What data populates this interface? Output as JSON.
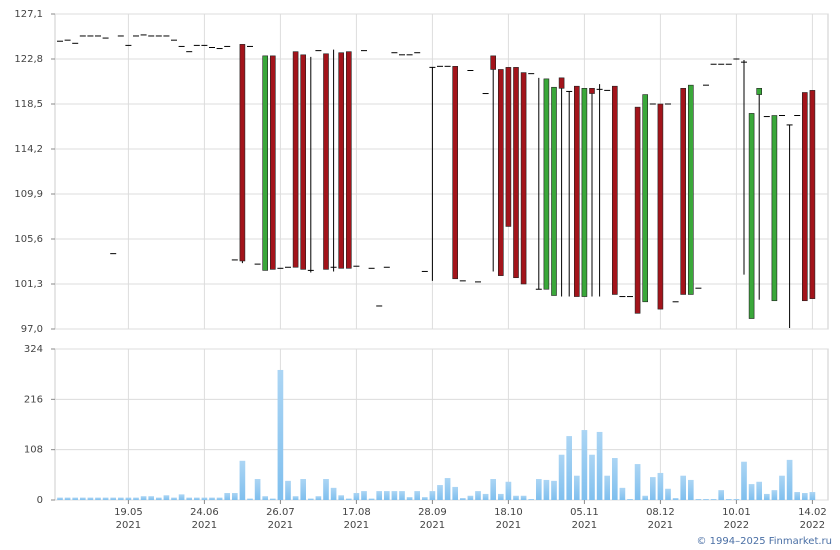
{
  "chart_data": {
    "type": "candlestick",
    "categories": [
      null,
      null,
      null,
      null,
      null,
      null,
      null,
      null,
      null,
      "19.05\n2021",
      null,
      null,
      null,
      null,
      null,
      null,
      null,
      null,
      null,
      "24.06\n2021",
      null,
      null,
      null,
      null,
      null,
      null,
      null,
      null,
      null,
      "26.07\n2021",
      null,
      null,
      null,
      null,
      null,
      null,
      null,
      null,
      null,
      "17.08\n2021",
      null,
      null,
      null,
      null,
      null,
      null,
      null,
      null,
      null,
      "28.09\n2021",
      null,
      null,
      null,
      null,
      null,
      null,
      null,
      null,
      null,
      "18.10\n2021",
      null,
      null,
      null,
      null,
      null,
      null,
      null,
      null,
      null,
      "05.11\n2021",
      null,
      null,
      null,
      null,
      null,
      null,
      null,
      null,
      null,
      "08.12\n2021",
      null,
      null,
      null,
      null,
      null,
      null,
      null,
      null,
      null,
      "10.01\n2022",
      null,
      null,
      null,
      null,
      null,
      null,
      null,
      null,
      null,
      "14.02\n2022"
    ],
    "open": [
      124.5,
      124.6,
      124.3,
      125.0,
      125.0,
      125.0,
      124.8,
      104.2,
      125.0,
      124.1,
      125.0,
      125.1,
      125.0,
      125.0,
      125.0,
      124.6,
      124.0,
      123.5,
      124.1,
      124.1,
      123.9,
      123.8,
      124.0,
      103.6,
      124.2,
      124.0,
      103.2,
      102.6,
      123.1,
      102.8,
      102.9,
      123.5,
      123.2,
      102.6,
      123.6,
      123.3,
      102.9,
      123.4,
      123.5,
      103.0,
      123.6,
      102.8,
      99.2,
      102.9,
      123.4,
      123.2,
      123.2,
      123.4,
      102.5,
      122.0,
      122.1,
      122.1,
      122.1,
      101.6,
      121.7,
      101.5,
      119.5,
      123.1,
      121.8,
      122.0,
      122.0,
      121.5,
      121.4,
      100.8,
      100.8,
      100.2,
      121.0,
      119.7,
      120.2,
      100.1,
      120.0,
      119.9,
      119.8,
      120.2,
      100.1,
      100.1,
      118.2,
      99.6,
      118.5,
      118.5,
      118.5,
      99.6,
      120.0,
      100.3,
      100.9,
      120.3,
      122.3,
      122.3,
      122.3,
      122.8,
      122.5,
      98.0,
      119.4,
      117.3,
      99.7,
      117.4,
      116.5,
      117.4,
      119.6,
      119.8
    ],
    "high": [
      124.5,
      124.6,
      124.3,
      125.0,
      125.0,
      125.0,
      124.8,
      104.2,
      125.0,
      124.1,
      125.0,
      125.1,
      125.0,
      125.0,
      125.0,
      124.6,
      124.0,
      123.5,
      124.1,
      124.1,
      123.9,
      123.8,
      124.0,
      103.6,
      124.2,
      124.0,
      103.2,
      123.1,
      123.1,
      102.8,
      102.9,
      123.5,
      123.2,
      123.0,
      123.6,
      123.3,
      123.7,
      123.4,
      123.5,
      103.0,
      123.6,
      102.8,
      99.2,
      102.9,
      123.4,
      123.2,
      123.2,
      123.4,
      102.5,
      122.0,
      122.1,
      122.1,
      122.1,
      101.6,
      121.7,
      101.5,
      119.5,
      123.1,
      121.8,
      122.0,
      122.0,
      121.5,
      121.4,
      121.0,
      120.9,
      120.1,
      121.0,
      119.7,
      120.2,
      120.0,
      120.0,
      120.4,
      119.8,
      120.2,
      100.1,
      100.1,
      118.2,
      119.4,
      118.5,
      118.5,
      118.5,
      99.6,
      120.0,
      120.3,
      100.9,
      120.3,
      122.3,
      122.3,
      122.3,
      122.8,
      122.7,
      117.6,
      120.0,
      117.3,
      117.4,
      117.4,
      116.5,
      117.4,
      119.6,
      119.8
    ],
    "low": [
      124.5,
      124.6,
      124.3,
      125.0,
      125.0,
      125.0,
      124.8,
      104.2,
      125.0,
      124.1,
      125.0,
      125.1,
      125.0,
      125.0,
      125.0,
      124.6,
      124.0,
      123.5,
      124.1,
      124.1,
      123.9,
      123.8,
      124.0,
      103.6,
      103.3,
      124.0,
      103.2,
      102.6,
      102.7,
      102.8,
      102.9,
      102.9,
      102.7,
      102.4,
      123.6,
      102.7,
      102.5,
      102.8,
      102.8,
      103.0,
      123.6,
      102.8,
      99.2,
      102.9,
      123.4,
      123.2,
      123.2,
      123.4,
      102.5,
      101.6,
      122.1,
      122.1,
      101.8,
      101.6,
      121.7,
      101.5,
      119.5,
      102.5,
      102.1,
      106.8,
      101.9,
      101.3,
      121.4,
      100.8,
      100.8,
      100.2,
      100.1,
      100.1,
      100.1,
      100.1,
      100.1,
      100.1,
      119.8,
      100.3,
      100.1,
      100.1,
      98.5,
      99.6,
      118.5,
      98.9,
      118.5,
      99.6,
      100.3,
      100.3,
      100.9,
      120.3,
      122.3,
      122.3,
      122.3,
      122.8,
      102.2,
      98.0,
      99.8,
      117.3,
      99.7,
      117.4,
      97.1,
      117.4,
      99.7,
      99.9
    ],
    "close": [
      124.5,
      124.6,
      124.3,
      125.0,
      125.0,
      125.0,
      124.8,
      104.2,
      125.0,
      124.1,
      125.0,
      125.1,
      125.0,
      125.0,
      125.0,
      124.6,
      124.0,
      123.5,
      124.1,
      124.1,
      123.9,
      123.8,
      124.0,
      103.6,
      103.5,
      124.0,
      103.2,
      123.1,
      102.7,
      102.8,
      102.9,
      102.9,
      102.7,
      102.6,
      123.6,
      102.7,
      102.9,
      102.8,
      102.8,
      103.0,
      123.6,
      102.8,
      99.2,
      102.9,
      123.4,
      123.2,
      123.2,
      123.4,
      102.5,
      122.0,
      122.1,
      122.1,
      101.8,
      101.6,
      121.7,
      101.5,
      119.5,
      121.8,
      102.1,
      106.8,
      101.9,
      101.3,
      121.4,
      100.8,
      120.9,
      120.1,
      120.0,
      119.7,
      100.1,
      120.0,
      119.5,
      119.9,
      119.8,
      100.3,
      100.1,
      100.1,
      98.5,
      119.4,
      118.5,
      98.9,
      118.5,
      99.6,
      100.3,
      120.3,
      100.9,
      120.3,
      122.3,
      122.3,
      122.3,
      122.8,
      122.5,
      117.6,
      120.0,
      117.3,
      117.4,
      117.4,
      116.5,
      117.4,
      99.7,
      99.9
    ],
    "volume": [
      5,
      5,
      5,
      5,
      5,
      5,
      5,
      5,
      5,
      5,
      5,
      8,
      8,
      5,
      10,
      5,
      12,
      5,
      5,
      5,
      5,
      5,
      15,
      15,
      84,
      3,
      45,
      8,
      3,
      279,
      41,
      8,
      45,
      3,
      8,
      45,
      26,
      10,
      3,
      15,
      19,
      3,
      19,
      19,
      19,
      19,
      6,
      19,
      6,
      19,
      32,
      47,
      28,
      4,
      9,
      19,
      13,
      45,
      13,
      39,
      9,
      9,
      2,
      45,
      43,
      41,
      97,
      137,
      52,
      150,
      97,
      146,
      52,
      90,
      26,
      2,
      77,
      9,
      49,
      58,
      24,
      4,
      52,
      43,
      2,
      2,
      2,
      21,
      2,
      2,
      82,
      34,
      39,
      13,
      21,
      52,
      86,
      17,
      15,
      17
    ],
    "ylim": [
      97.0,
      127.1
    ],
    "yticks": [
      {
        "value": 97.0,
        "label": "97,0"
      },
      {
        "value": 101.3,
        "label": "101,3"
      },
      {
        "value": 105.6,
        "label": "105,6"
      },
      {
        "value": 109.9,
        "label": "109,9"
      },
      {
        "value": 114.2,
        "label": "114,2"
      },
      {
        "value": 118.5,
        "label": "118,5"
      },
      {
        "value": 122.8,
        "label": "122,8"
      },
      {
        "value": 127.1,
        "label": "127,1"
      }
    ],
    "volume_ylim": [
      0,
      324
    ],
    "volume_yticks": [
      0,
      108,
      216,
      324
    ],
    "up_color": "#3aa83a",
    "down_color": "#a3141b",
    "volume_color": "#7fbfee",
    "grid": true
  },
  "footer": "© 1994–2025 Finmarket.ru"
}
